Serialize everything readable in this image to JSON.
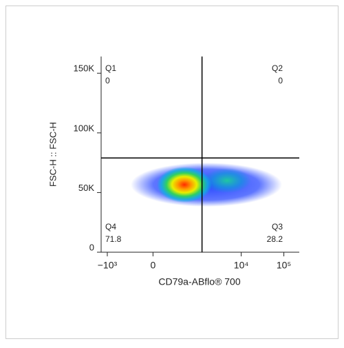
{
  "chart_data": {
    "type": "flow-quadrant",
    "xlabel": "CD79a-ABflo® 700",
    "ylabel": "FSC-H :: FSC-H",
    "xscale": "biexponential",
    "xlim": [
      -1400,
      230000
    ],
    "xticks": [
      {
        "value": -1000,
        "label": "−10³"
      },
      0,
      {
        "value": 10000,
        "label": "10⁴"
      },
      {
        "value": 100000,
        "label": "10⁵"
      }
    ],
    "ylim": [
      0,
      164000
    ],
    "yticks": [
      0,
      {
        "value": 50000,
        "label": "50K"
      },
      {
        "value": 100000,
        "label": "100K"
      },
      {
        "value": 150000,
        "label": "150K"
      }
    ],
    "gate": {
      "x": 1200,
      "y": 79000
    },
    "quadrants": [
      {
        "name": "Q1",
        "value": 0
      },
      {
        "name": "Q2",
        "value": 0
      },
      {
        "name": "Q3",
        "value": 28.2
      },
      {
        "name": "Q4",
        "value": 71.8
      }
    ]
  }
}
